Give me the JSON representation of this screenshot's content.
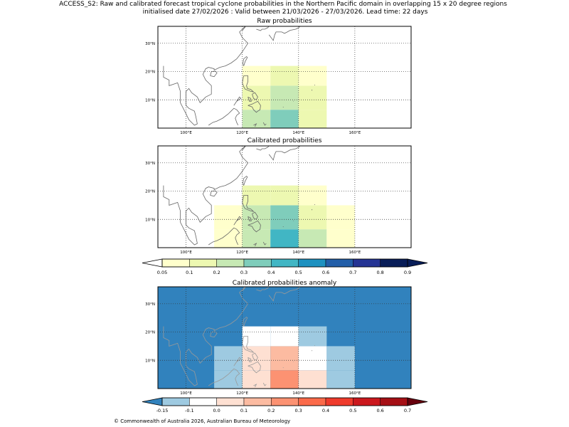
{
  "title_line1": "ACCESS_S2: Raw and calibrated forecast tropical cyclone probabilities in the Northern Pacific domain in overlapping 15 x 20 degree regions",
  "title_line2": "initialised date 27/02/2026 :  Valid between 21/03/2026 - 27/03/2026. Lead time: 22 days",
  "copyright": "© Commonwealth of Australia 2026, Australian Bureau of Meteorology",
  "chart_data": [
    {
      "type": "heatmap",
      "title": "Raw probabilities",
      "xlabel": "",
      "ylabel": "",
      "x_ticks": [
        "100°E",
        "120°E",
        "140°E",
        "160°E"
      ],
      "y_ticks": [
        "10°N",
        "20°N",
        "30°N"
      ],
      "xlim": [
        90,
        180
      ],
      "ylim": [
        0,
        36
      ],
      "grid": true,
      "cells": [
        {
          "lon": [
            120,
            130
          ],
          "lat": [
            0,
            6.5
          ],
          "value": 0.25
        },
        {
          "lon": [
            130,
            140
          ],
          "lat": [
            0,
            6.5
          ],
          "value": 0.35
        },
        {
          "lon": [
            140,
            150
          ],
          "lat": [
            0,
            6.5
          ],
          "value": 0.15
        },
        {
          "lon": [
            120,
            130
          ],
          "lat": [
            6.5,
            15
          ],
          "value": 0.15
        },
        {
          "lon": [
            130,
            140
          ],
          "lat": [
            6.5,
            15
          ],
          "value": 0.25
        },
        {
          "lon": [
            140,
            150
          ],
          "lat": [
            6.5,
            15
          ],
          "value": 0.15
        },
        {
          "lon": [
            120,
            130
          ],
          "lat": [
            15,
            22
          ],
          "value": 0.07
        },
        {
          "lon": [
            130,
            140
          ],
          "lat": [
            15,
            22
          ],
          "value": 0.15
        },
        {
          "lon": [
            140,
            150
          ],
          "lat": [
            15,
            22
          ],
          "value": 0.07
        }
      ]
    },
    {
      "type": "heatmap",
      "title": "Calibrated probabilities",
      "xlabel": "",
      "ylabel": "",
      "x_ticks": [
        "100°E",
        "120°E",
        "140°E",
        "160°E"
      ],
      "y_ticks": [
        "10°N",
        "20°N",
        "30°N"
      ],
      "xlim": [
        90,
        180
      ],
      "ylim": [
        0,
        36
      ],
      "grid": true,
      "cells": [
        {
          "lon": [
            110,
            120
          ],
          "lat": [
            0,
            6.5
          ],
          "value": 0.07
        },
        {
          "lon": [
            120,
            130
          ],
          "lat": [
            0,
            6.5
          ],
          "value": 0.25
        },
        {
          "lon": [
            130,
            140
          ],
          "lat": [
            0,
            6.5
          ],
          "value": 0.45
        },
        {
          "lon": [
            140,
            150
          ],
          "lat": [
            0,
            6.5
          ],
          "value": 0.25
        },
        {
          "lon": [
            150,
            160
          ],
          "lat": [
            0,
            6.5
          ],
          "value": 0.07
        },
        {
          "lon": [
            110,
            120
          ],
          "lat": [
            6.5,
            15
          ],
          "value": 0.07
        },
        {
          "lon": [
            120,
            130
          ],
          "lat": [
            6.5,
            15
          ],
          "value": 0.25
        },
        {
          "lon": [
            130,
            140
          ],
          "lat": [
            6.5,
            15
          ],
          "value": 0.35
        },
        {
          "lon": [
            140,
            150
          ],
          "lat": [
            6.5,
            15
          ],
          "value": 0.15
        },
        {
          "lon": [
            150,
            160
          ],
          "lat": [
            6.5,
            15
          ],
          "value": 0.07
        },
        {
          "lon": [
            120,
            130
          ],
          "lat": [
            15,
            22
          ],
          "value": 0.15
        },
        {
          "lon": [
            130,
            140
          ],
          "lat": [
            15,
            22
          ],
          "value": 0.15
        },
        {
          "lon": [
            140,
            150
          ],
          "lat": [
            15,
            22
          ],
          "value": 0.07
        }
      ]
    },
    {
      "type": "heatmap",
      "title": "Calibrated probabilities anomaly",
      "xlabel": "",
      "ylabel": "",
      "x_ticks": [
        "100°E",
        "120°E",
        "140°E",
        "160°E"
      ],
      "y_ticks": [
        "10°N",
        "20°N",
        "30°N"
      ],
      "xlim": [
        90,
        180
      ],
      "ylim": [
        0,
        36
      ],
      "grid": true,
      "background_value": -0.2,
      "cells": [
        {
          "lon": [
            110,
            120
          ],
          "lat": [
            0,
            6.5
          ],
          "value": -0.12
        },
        {
          "lon": [
            120,
            130
          ],
          "lat": [
            0,
            6.5
          ],
          "value": 0.05
        },
        {
          "lon": [
            130,
            140
          ],
          "lat": [
            0,
            6.5
          ],
          "value": 0.25
        },
        {
          "lon": [
            140,
            150
          ],
          "lat": [
            0,
            6.5
          ],
          "value": 0.05
        },
        {
          "lon": [
            150,
            160
          ],
          "lat": [
            0,
            6.5
          ],
          "value": -0.12
        },
        {
          "lon": [
            110,
            120
          ],
          "lat": [
            6.5,
            15
          ],
          "value": -0.12
        },
        {
          "lon": [
            120,
            130
          ],
          "lat": [
            6.5,
            15
          ],
          "value": 0.05
        },
        {
          "lon": [
            130,
            140
          ],
          "lat": [
            6.5,
            15
          ],
          "value": 0.15
        },
        {
          "lon": [
            140,
            150
          ],
          "lat": [
            6.5,
            15
          ],
          "value": -0.02
        },
        {
          "lon": [
            150,
            160
          ],
          "lat": [
            6.5,
            15
          ],
          "value": -0.12
        },
        {
          "lon": [
            120,
            130
          ],
          "lat": [
            15,
            22
          ],
          "value": -0.02
        },
        {
          "lon": [
            130,
            140
          ],
          "lat": [
            15,
            22
          ],
          "value": -0.02
        },
        {
          "lon": [
            140,
            150
          ],
          "lat": [
            15,
            22
          ],
          "value": -0.12
        }
      ]
    }
  ],
  "colorbars": [
    {
      "name": "probability",
      "ticks": [
        "0.05",
        "0.1",
        "0.2",
        "0.3",
        "0.4",
        "0.5",
        "0.6",
        "0.7",
        "0.8",
        "0.9"
      ],
      "colors": [
        "#ffffcc",
        "#edf8b1",
        "#c7e9b4",
        "#7fcdbb",
        "#41b6c4",
        "#1d91c0",
        "#225ea8",
        "#253494",
        "#081d58"
      ],
      "under": "#ffffff",
      "over": "#081d58"
    },
    {
      "name": "anomaly",
      "ticks": [
        "-0.15",
        "-0.1",
        "0.0",
        "0.1",
        "0.2",
        "0.3",
        "0.4",
        "0.5",
        "0.6",
        "0.7"
      ],
      "colors": [
        "#9ecae1",
        "#ffffff",
        "#fee0d2",
        "#fcbba1",
        "#fc9272",
        "#fb6a4a",
        "#ef3b2c",
        "#cb181d",
        "#a50f15"
      ],
      "under": "#3182bd",
      "over": "#67000d"
    }
  ]
}
